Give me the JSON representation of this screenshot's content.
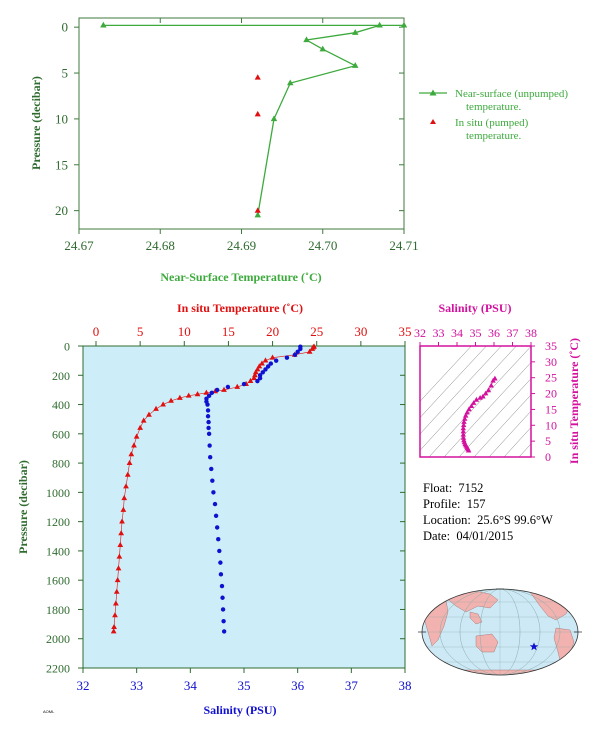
{
  "colors": {
    "green": "#3daa3d",
    "red": "#e01010",
    "blue": "#1010d0",
    "magenta": "#d4109e",
    "plot_bg": "#cdeef8",
    "axis_green": "#2f6b2f",
    "land": "#f2b3b0",
    "ocean": "#cce9f5"
  },
  "info": {
    "float_label": "Float:",
    "float_value": "7152",
    "profile_label": "Profile:",
    "profile_value": "157",
    "location_label": "Location:",
    "location_value": "25.6°S  99.6°W",
    "date_label": "Date:",
    "date_value": "04/01/2015"
  },
  "figure_id": "AOML",
  "map": {
    "marker_icon": "star-icon"
  },
  "chart_data": [
    {
      "id": "near-surface",
      "type": "scatter",
      "title": "",
      "xlabel": "Near-Surface Temperature (˚C)",
      "ylabel": "Pressure (decibar)",
      "xlim": [
        24.67,
        24.71
      ],
      "ylim": [
        22,
        -1
      ],
      "xticks": [
        "24.67",
        "24.68",
        "24.69",
        "24.70",
        "24.71"
      ],
      "yticks": [
        "0",
        "5",
        "10",
        "15",
        "20"
      ],
      "legend_position": "right",
      "series": [
        {
          "name": "Near-surface (unpumped) temperature.",
          "style": "line-triangle",
          "color": "green",
          "points": [
            [
              24.673,
              -0.2
            ],
            [
              24.71,
              -0.2
            ],
            [
              24.707,
              -0.2
            ],
            [
              24.704,
              0.6
            ],
            [
              24.698,
              1.4
            ],
            [
              24.7,
              2.4
            ],
            [
              24.704,
              4.2
            ],
            [
              24.696,
              6.1
            ],
            [
              24.694,
              10.0
            ],
            [
              24.692,
              20.5
            ]
          ]
        },
        {
          "name": "In situ (pumped) temperature.",
          "style": "triangle",
          "color": "red",
          "points": [
            [
              24.692,
              5.5
            ],
            [
              24.692,
              9.5
            ],
            [
              24.692,
              20.0
            ]
          ]
        }
      ]
    },
    {
      "id": "profile",
      "type": "scatter",
      "top_xlabel": "In situ Temperature (˚C)",
      "bottom_xlabel": "Salinity (PSU)",
      "ylabel": "Pressure (decibar)",
      "temperature_xlim": [
        0,
        35
      ],
      "salinity_xlim": [
        32,
        38
      ],
      "ylim": [
        2200,
        0
      ],
      "temperature_ticks": [
        "0",
        "5",
        "10",
        "15",
        "20",
        "25",
        "30",
        "35"
      ],
      "salinity_ticks": [
        "32",
        "33",
        "34",
        "35",
        "36",
        "37",
        "38"
      ],
      "pressure_ticks": [
        "0",
        "200",
        "400",
        "600",
        "800",
        "1000",
        "1200",
        "1400",
        "1600",
        "1800",
        "2000",
        "2200"
      ],
      "temperature": [
        [
          24.7,
          5
        ],
        [
          24.6,
          10
        ],
        [
          24.5,
          20
        ],
        [
          24.2,
          40
        ],
        [
          22.5,
          60
        ],
        [
          20.0,
          80
        ],
        [
          19.2,
          100
        ],
        [
          18.8,
          120
        ],
        [
          18.5,
          140
        ],
        [
          18.3,
          160
        ],
        [
          18.1,
          180
        ],
        [
          18.0,
          200
        ],
        [
          17.9,
          220
        ],
        [
          17.5,
          240
        ],
        [
          17.0,
          260
        ],
        [
          16.0,
          280
        ],
        [
          14.5,
          300
        ],
        [
          13.5,
          310
        ],
        [
          12.5,
          320
        ],
        [
          11.5,
          330
        ],
        [
          10.5,
          340
        ],
        [
          9.5,
          355
        ],
        [
          8.5,
          375
        ],
        [
          7.6,
          400
        ],
        [
          6.8,
          430
        ],
        [
          6.0,
          470
        ],
        [
          5.4,
          510
        ],
        [
          5.0,
          560
        ],
        [
          4.6,
          620
        ],
        [
          4.3,
          680
        ],
        [
          4.0,
          740
        ],
        [
          3.8,
          800
        ],
        [
          3.6,
          880
        ],
        [
          3.4,
          960
        ],
        [
          3.2,
          1040
        ],
        [
          3.1,
          1120
        ],
        [
          2.95,
          1200
        ],
        [
          2.85,
          1280
        ],
        [
          2.75,
          1360
        ],
        [
          2.65,
          1440
        ],
        [
          2.55,
          1520
        ],
        [
          2.45,
          1600
        ],
        [
          2.35,
          1680
        ],
        [
          2.25,
          1760
        ],
        [
          2.15,
          1840
        ],
        [
          2.05,
          1920
        ],
        [
          2.0,
          1950
        ]
      ],
      "salinity": [
        [
          36.05,
          5
        ],
        [
          36.05,
          20
        ],
        [
          36.0,
          40
        ],
        [
          35.95,
          60
        ],
        [
          35.8,
          80
        ],
        [
          35.6,
          100
        ],
        [
          35.5,
          120
        ],
        [
          35.45,
          140
        ],
        [
          35.4,
          160
        ],
        [
          35.35,
          180
        ],
        [
          35.3,
          200
        ],
        [
          35.3,
          220
        ],
        [
          35.25,
          240
        ],
        [
          35.0,
          260
        ],
        [
          34.7,
          280
        ],
        [
          34.5,
          300
        ],
        [
          34.4,
          320
        ],
        [
          34.35,
          340
        ],
        [
          34.3,
          360
        ],
        [
          34.3,
          380
        ],
        [
          34.32,
          400
        ],
        [
          34.33,
          440
        ],
        [
          34.33,
          480
        ],
        [
          34.34,
          520
        ],
        [
          34.34,
          560
        ],
        [
          34.35,
          600
        ],
        [
          34.36,
          680
        ],
        [
          34.37,
          760
        ],
        [
          34.39,
          840
        ],
        [
          34.41,
          920
        ],
        [
          34.43,
          1000
        ],
        [
          34.46,
          1080
        ],
        [
          34.48,
          1160
        ],
        [
          34.5,
          1240
        ],
        [
          34.52,
          1320
        ],
        [
          34.54,
          1400
        ],
        [
          34.56,
          1480
        ],
        [
          34.57,
          1560
        ],
        [
          34.59,
          1640
        ],
        [
          34.6,
          1720
        ],
        [
          34.61,
          1800
        ],
        [
          34.62,
          1880
        ],
        [
          34.63,
          1950
        ]
      ]
    },
    {
      "id": "ts-diagram",
      "type": "scatter",
      "xlabel": "Salinity (PSU)",
      "ylabel": "In situ Temperature (˚C)",
      "xlim": [
        32,
        38
      ],
      "ylim": [
        0,
        35
      ],
      "xticks": [
        "32",
        "33",
        "34",
        "35",
        "36",
        "37",
        "38"
      ],
      "yticks": [
        "0",
        "5",
        "10",
        "15",
        "20",
        "25",
        "30",
        "35"
      ],
      "points": [
        [
          34.63,
          2.0
        ],
        [
          34.6,
          2.4
        ],
        [
          34.56,
          2.8
        ],
        [
          34.52,
          3.2
        ],
        [
          34.48,
          3.6
        ],
        [
          34.44,
          4.0
        ],
        [
          34.4,
          4.6
        ],
        [
          34.37,
          5.2
        ],
        [
          34.35,
          6.0
        ],
        [
          34.34,
          7.0
        ],
        [
          34.34,
          8.0
        ],
        [
          34.34,
          9.0
        ],
        [
          34.36,
          10.0
        ],
        [
          34.38,
          11.0
        ],
        [
          34.42,
          12.0
        ],
        [
          34.47,
          13.0
        ],
        [
          34.55,
          14.0
        ],
        [
          34.65,
          15.0
        ],
        [
          34.78,
          16.0
        ],
        [
          34.9,
          17.0
        ],
        [
          35.05,
          18.0
        ],
        [
          35.25,
          18.6
        ],
        [
          35.4,
          19.0
        ],
        [
          35.55,
          20.0
        ],
        [
          35.7,
          21.0
        ],
        [
          35.85,
          22.5
        ],
        [
          35.95,
          24.0
        ],
        [
          36.05,
          24.7
        ]
      ]
    }
  ]
}
